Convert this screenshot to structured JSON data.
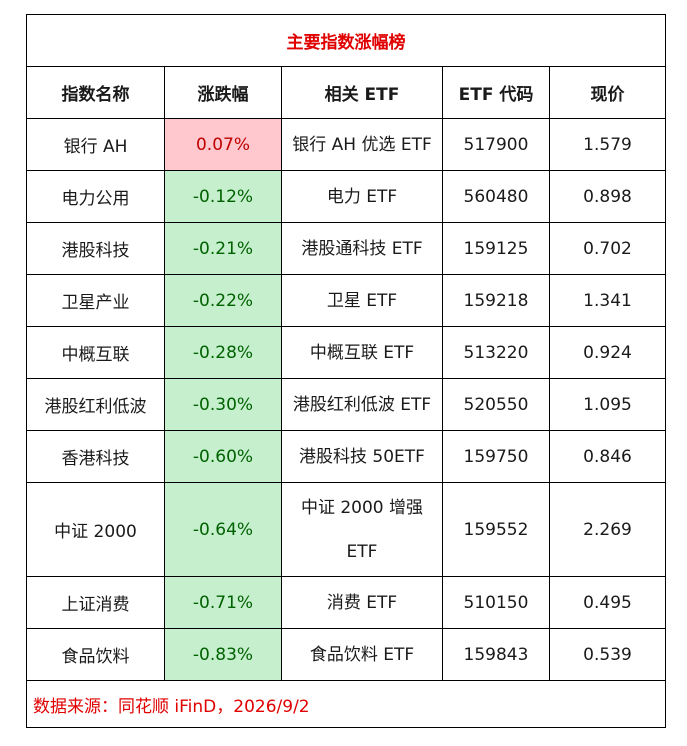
{
  "title": "主要指数涨幅榜",
  "headers": [
    "指数名称",
    "涨跌幅",
    "相关 ETF",
    "ETF 代码",
    "现价"
  ],
  "rows": [
    {
      "index": "银行 AH",
      "change": "0.07%",
      "etf": "银行 AH 优选 ETF",
      "code": "517900",
      "price": "1.579",
      "dir": "up"
    },
    {
      "index": "电力公用",
      "change": "-0.12%",
      "etf": "电力 ETF",
      "code": "560480",
      "price": "0.898",
      "dir": "down"
    },
    {
      "index": "港股科技",
      "change": "-0.21%",
      "etf": "港股通科技 ETF",
      "code": "159125",
      "price": "0.702",
      "dir": "down"
    },
    {
      "index": "卫星产业",
      "change": "-0.22%",
      "etf": "卫星 ETF",
      "code": "159218",
      "price": "1.341",
      "dir": "down"
    },
    {
      "index": "中概互联",
      "change": "-0.28%",
      "etf": "中概互联 ETF",
      "code": "513220",
      "price": "0.924",
      "dir": "down"
    },
    {
      "index": "港股红利低波",
      "change": "-0.30%",
      "etf": "港股红利低波 ETF",
      "code": "520550",
      "price": "1.095",
      "dir": "down"
    },
    {
      "index": "香港科技",
      "change": "-0.60%",
      "etf": "港股科技 50ETF",
      "code": "159750",
      "price": "0.846",
      "dir": "down"
    },
    {
      "index": "中证 2000",
      "change": "-0.64%",
      "etf": "中证 2000 增强 ETF",
      "code": "159552",
      "price": "2.269",
      "dir": "down"
    },
    {
      "index": "上证消费",
      "change": "-0.71%",
      "etf": "消费 ETF",
      "code": "510150",
      "price": "0.495",
      "dir": "down"
    },
    {
      "index": "食品饮料",
      "change": "-0.83%",
      "etf": "食品饮料 ETF",
      "code": "159843",
      "price": "0.539",
      "dir": "down"
    }
  ],
  "source": "数据来源：同花顺 iFinD，2026/9/2",
  "colors": {
    "up_bg": "#ffc7ce",
    "up_text": "#c00000",
    "down_bg": "#c6efce",
    "down_text": "#006100",
    "title_text": "#e00000"
  }
}
